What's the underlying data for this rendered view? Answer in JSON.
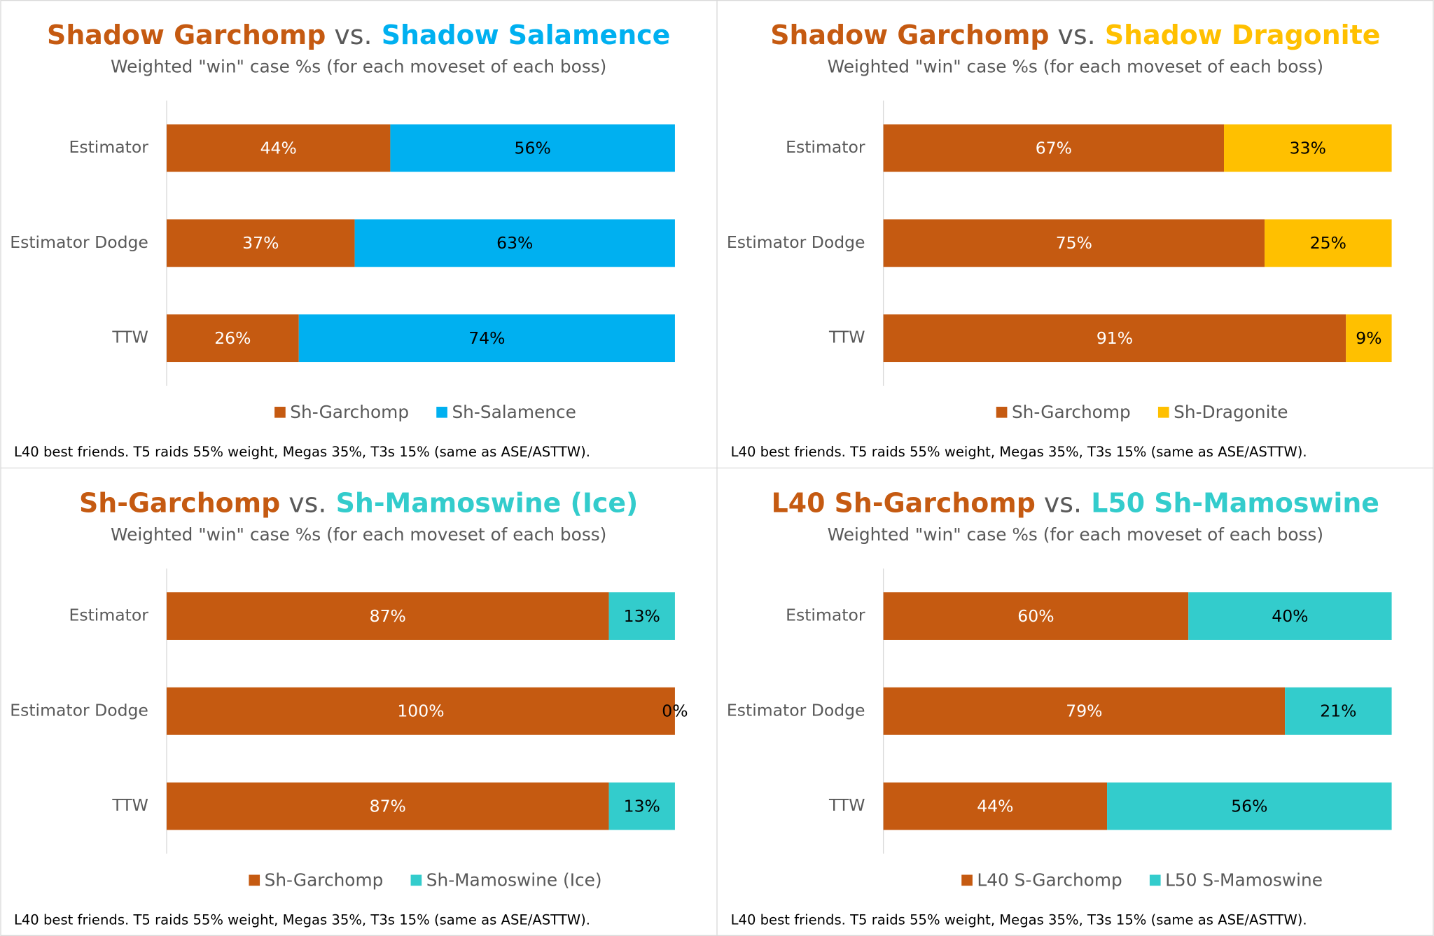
{
  "chart_data": [
    {
      "type": "bar",
      "orientation": "horizontal",
      "stacked": true,
      "title": [
        "Shadow Garchomp",
        "vs.",
        "Shadow Salamence"
      ],
      "subtitle": "Weighted \"win\" case %s (for each moveset of each boss)",
      "categories": [
        "Estimator",
        "Estimator Dodge",
        "TTW"
      ],
      "series": [
        {
          "name": "Sh-Garchomp",
          "color": "#c55a11",
          "values": [
            44,
            37,
            26
          ],
          "value_labels": [
            "44%",
            "37%",
            "26%"
          ]
        },
        {
          "name": "Sh-Salamence",
          "color": "#00b0f0",
          "values": [
            56,
            63,
            74
          ],
          "value_labels": [
            "56%",
            "63%",
            "74%"
          ]
        }
      ],
      "legend": "bottom",
      "footnote": "L40 best friends. T5 raids 55% weight, Megas 35%, T3s 15% (same as ASE/ASTTW)."
    },
    {
      "type": "bar",
      "orientation": "horizontal",
      "stacked": true,
      "title": [
        "Shadow Garchomp",
        "vs.",
        "Shadow Dragonite"
      ],
      "subtitle": "Weighted \"win\" case %s (for each moveset of each boss)",
      "categories": [
        "Estimator",
        "Estimator Dodge",
        "TTW"
      ],
      "series": [
        {
          "name": "Sh-Garchomp",
          "color": "#c55a11",
          "values": [
            67,
            75,
            91
          ],
          "value_labels": [
            "67%",
            "75%",
            "91%"
          ]
        },
        {
          "name": "Sh-Dragonite",
          "color": "#ffc000",
          "values": [
            33,
            25,
            9
          ],
          "value_labels": [
            "33%",
            "25%",
            "9%"
          ]
        }
      ],
      "legend": "bottom",
      "footnote": "L40 best friends. T5 raids 55% weight, Megas 35%, T3s 15% (same as ASE/ASTTW)."
    },
    {
      "type": "bar",
      "orientation": "horizontal",
      "stacked": true,
      "title": [
        "Sh-Garchomp",
        "vs.",
        "Sh-Mamoswine (Ice)"
      ],
      "subtitle": "Weighted \"win\" case %s (for each moveset of each boss)",
      "categories": [
        "Estimator",
        "Estimator Dodge",
        "TTW"
      ],
      "series": [
        {
          "name": "Sh-Garchomp",
          "color": "#c55a11",
          "values": [
            87,
            100,
            87
          ],
          "value_labels": [
            "87%",
            "100%",
            "87%"
          ]
        },
        {
          "name": "Sh-Mamoswine (Ice)",
          "color": "#33cccc",
          "values": [
            13,
            0,
            13
          ],
          "value_labels": [
            "13%",
            "0%",
            "13%"
          ]
        }
      ],
      "legend": "bottom",
      "footnote": "L40 best friends. T5 raids 55% weight, Megas 35%, T3s 15% (same as ASE/ASTTW)."
    },
    {
      "type": "bar",
      "orientation": "horizontal",
      "stacked": true,
      "title": [
        "L40 Sh-Garchomp",
        "vs.",
        "L50 Sh-Mamoswine"
      ],
      "subtitle": "Weighted \"win\" case %s (for each moveset of each boss)",
      "categories": [
        "Estimator",
        "Estimator Dodge",
        "TTW"
      ],
      "series": [
        {
          "name": "L40 S-Garchomp",
          "color": "#c55a11",
          "values": [
            60,
            79,
            44
          ],
          "value_labels": [
            "60%",
            "79%",
            "44%"
          ]
        },
        {
          "name": "L50 S-Mamoswine",
          "color": "#33cccc",
          "values": [
            40,
            21,
            56
          ],
          "value_labels": [
            "40%",
            "21%",
            "56%"
          ]
        }
      ],
      "legend": "bottom",
      "footnote": "L40 best friends. T5 raids 55% weight, Megas 35%, T3s 15% (same as ASE/ASTTW)."
    }
  ]
}
